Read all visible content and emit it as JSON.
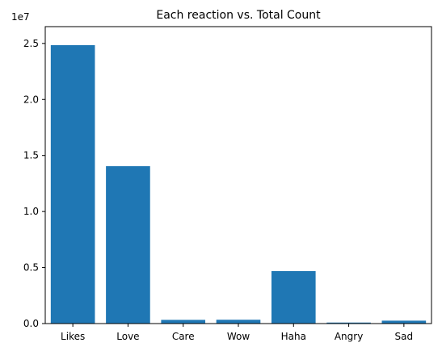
{
  "chart_data": {
    "type": "bar",
    "title": "Each reaction vs. Total Count",
    "xlabel": "",
    "ylabel": "",
    "categories": [
      "Likes",
      "Love",
      "Care",
      "Wow",
      "Haha",
      "Angry",
      "Sad"
    ],
    "values": [
      24850000,
      14050000,
      330000,
      340000,
      4680000,
      90000,
      260000
    ],
    "ylim": [
      0,
      26500000
    ],
    "yticks": [
      0,
      5000000,
      10000000,
      15000000,
      20000000,
      25000000
    ],
    "ytick_labels": [
      "0.0",
      "0.5",
      "1.0",
      "1.5",
      "2.0",
      "2.5"
    ],
    "offset_label": "1e7",
    "bar_color": "#1f77b4",
    "grid": false,
    "legend": "none"
  }
}
